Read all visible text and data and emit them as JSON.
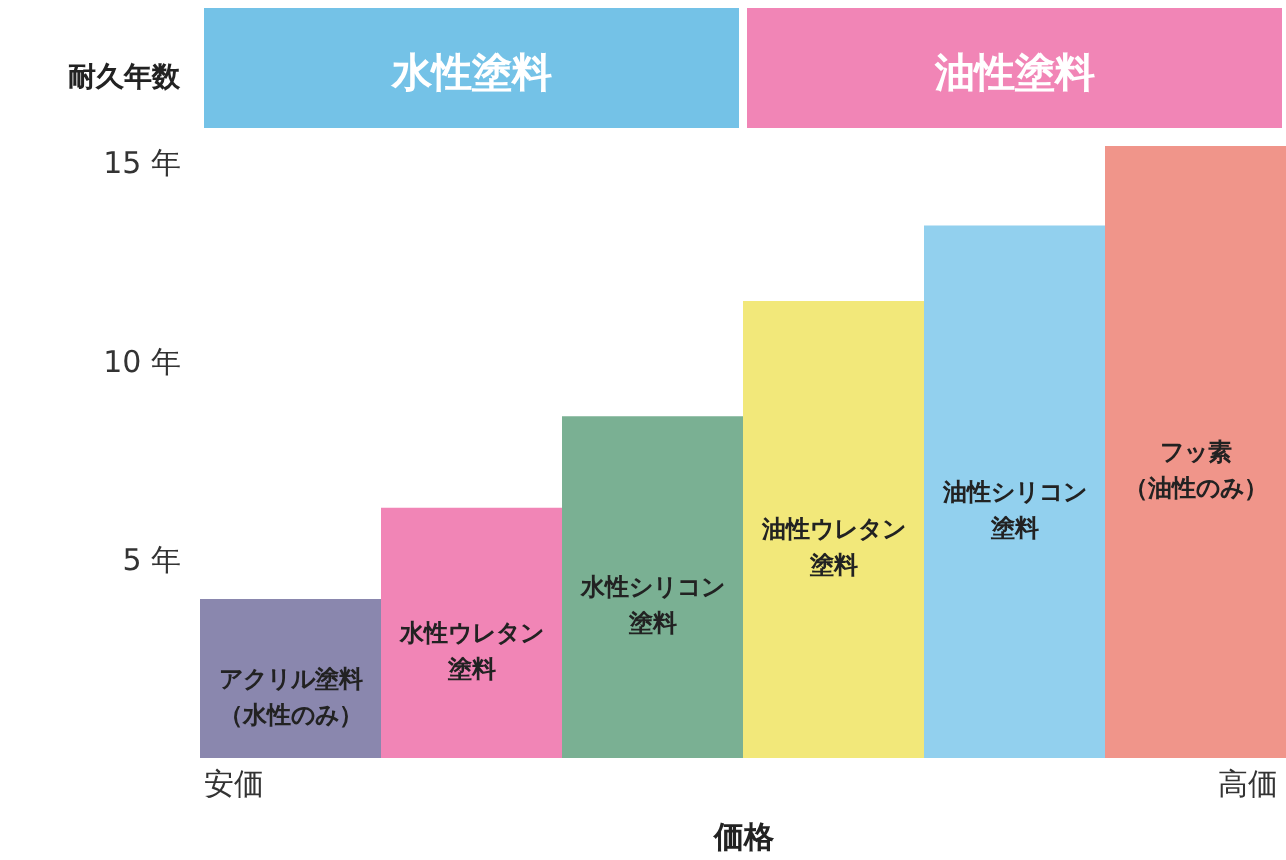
{
  "chart_data": {
    "type": "bar",
    "xlabel": "価格",
    "ylabel": "耐久年数",
    "categories": [
      "アクリル塗料（水性のみ）",
      "水性ウレタン塗料",
      "水性シリコン塗料",
      "油性ウレタン塗料",
      "油性シリコン塗料",
      "フッ素（油性のみ）"
    ],
    "values": [
      4,
      6.3,
      8.6,
      11.5,
      13.4,
      15.4
    ],
    "colors": [
      "#8a87ae",
      "#f185b6",
      "#7ab093",
      "#f2e87a",
      "#92d0ee",
      "#f0958a"
    ],
    "ylim": [
      0,
      15.5
    ],
    "yticks": [
      {
        "value": 5,
        "label": "5 年"
      },
      {
        "value": 10,
        "label": "10 年"
      },
      {
        "value": 15,
        "label": "15 年"
      }
    ],
    "tick_labels": "y",
    "annotations": [
      "水性塗料",
      "油性塗料",
      "安価",
      "高価"
    ]
  }
}
